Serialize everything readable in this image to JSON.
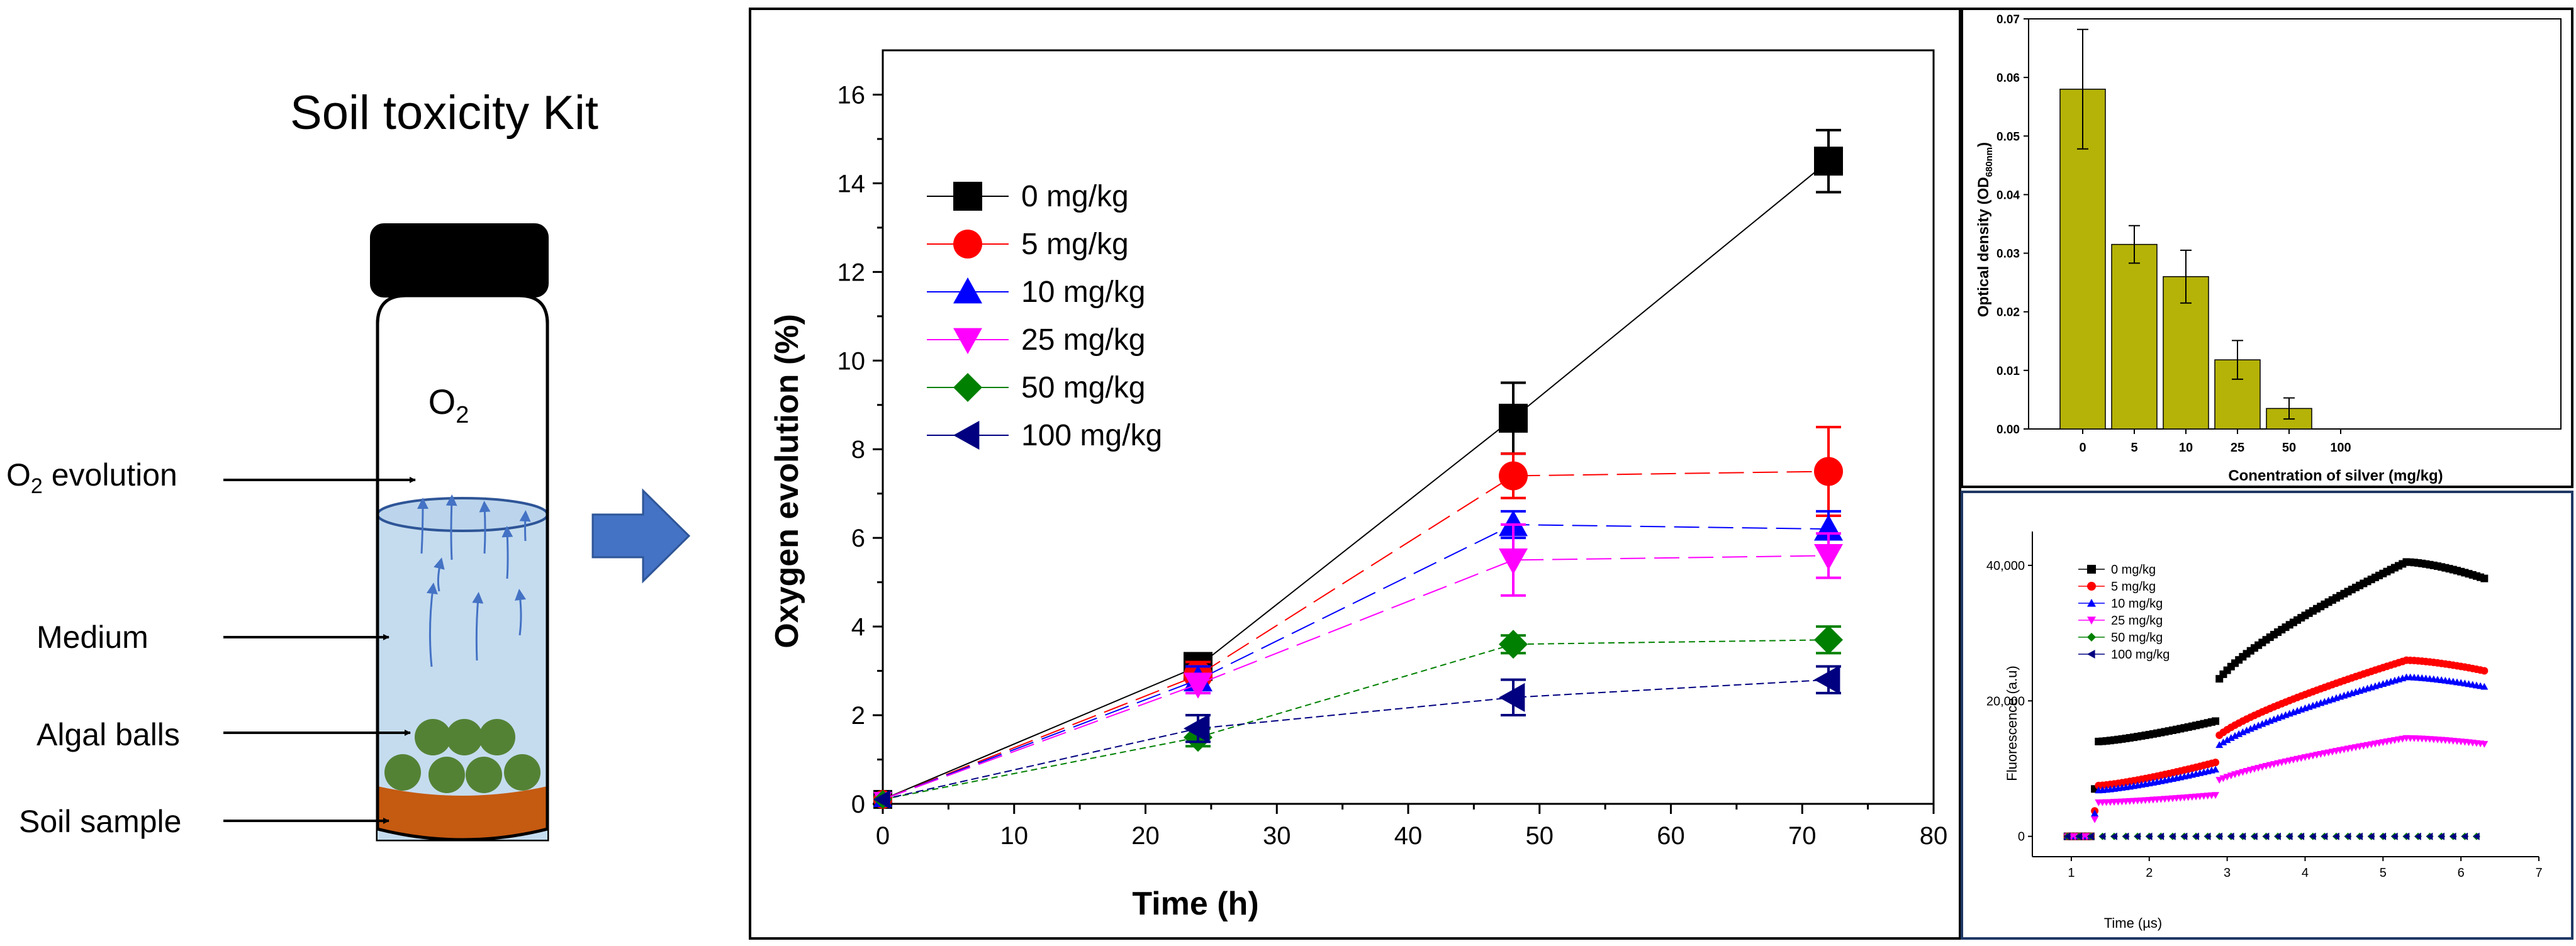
{
  "kit": {
    "title": "Soil toxicity Kit",
    "o2_label": "O",
    "o2_sub": "2",
    "labels": {
      "evolution_prefix": "O",
      "evolution_sub": "2",
      "evolution_suffix": " evolution",
      "medium": "Medium",
      "algal_balls": "Algal balls",
      "soil_sample": "Soil sample"
    },
    "colors": {
      "cap": "#000000",
      "medium": "#c5dcef",
      "soil": "#c55a11",
      "ball": "#548235",
      "arrow": "#4472c4"
    }
  },
  "chart_data": [
    {
      "id": "main",
      "type": "line",
      "title": "",
      "xlabel": "Time (h)",
      "ylabel": "Oxygen evolution (%)",
      "xlim": [
        0,
        80
      ],
      "ylim": [
        0,
        17
      ],
      "xticks": [
        0,
        10,
        20,
        30,
        40,
        50,
        60,
        70,
        80
      ],
      "yticks": [
        0,
        2,
        4,
        6,
        8,
        10,
        12,
        14,
        16
      ],
      "x": [
        0,
        24,
        48,
        72
      ],
      "series": [
        {
          "name": "0 mg/kg",
          "color": "#000000",
          "marker": "square",
          "values": [
            0.1,
            3.1,
            8.7,
            14.5
          ],
          "errors": [
            0.1,
            0.15,
            0.8,
            0.7
          ]
        },
        {
          "name": "5 mg/kg",
          "color": "#ff0000",
          "marker": "circle",
          "values": [
            0.1,
            2.9,
            7.4,
            7.5
          ],
          "errors": [
            0.1,
            0.3,
            0.5,
            1.0
          ]
        },
        {
          "name": "10 mg/kg",
          "color": "#0000ff",
          "marker": "triangle-up",
          "values": [
            0.1,
            2.8,
            6.3,
            6.2
          ],
          "errors": [
            0.1,
            0.3,
            0.3,
            0.4
          ]
        },
        {
          "name": "25 mg/kg",
          "color": "#ff00ff",
          "marker": "triangle-down",
          "values": [
            0.1,
            2.7,
            5.5,
            5.6
          ],
          "errors": [
            0.1,
            0.2,
            0.8,
            0.5
          ]
        },
        {
          "name": "50 mg/kg",
          "color": "#008000",
          "marker": "diamond",
          "values": [
            0.1,
            1.5,
            3.6,
            3.7
          ],
          "errors": [
            0.1,
            0.2,
            0.2,
            0.3
          ]
        },
        {
          "name": "100 mg/kg",
          "color": "#000080",
          "marker": "triangle-left",
          "values": [
            0.1,
            1.7,
            2.4,
            2.8
          ],
          "errors": [
            0.1,
            0.3,
            0.4,
            0.3
          ]
        }
      ],
      "legend": "upper-left"
    },
    {
      "id": "od",
      "type": "bar",
      "title": "",
      "xlabel": "Conentration of silver (mg/kg)",
      "ylabel": "Optical density (OD",
      "ylabel_sub": "680nm",
      "ylabel_suffix": ")",
      "ylim": [
        0,
        0.07
      ],
      "yticks": [
        "0.00",
        "0.01",
        "0.02",
        "0.03",
        "0.04",
        "0.05",
        "0.06",
        "0.07"
      ],
      "categories": [
        "0",
        "5",
        "10",
        "25",
        "50",
        "100"
      ],
      "values": [
        0.058,
        0.0315,
        0.026,
        0.0118,
        0.0035,
        0
      ],
      "errors": [
        0.0102,
        0.0032,
        0.0045,
        0.0033,
        0.0018,
        0
      ],
      "color": "#b5b307"
    },
    {
      "id": "fluor",
      "type": "scatter",
      "title": "",
      "xlabel": "Time (µs)",
      "ylabel": "Fluorescence (a.u)",
      "xlim": [
        0.5,
        7
      ],
      "ylim": [
        -3000,
        45000
      ],
      "xticks": [
        1,
        2,
        3,
        4,
        5,
        6,
        7
      ],
      "ytick_values": [
        0,
        20000,
        40000
      ],
      "ytick_labels": [
        "0",
        "20,000",
        "40,000"
      ],
      "series": [
        {
          "name": "0 mg/kg",
          "color": "#000000",
          "marker": "square",
          "peak": 40500,
          "start": 14000
        },
        {
          "name": "5 mg/kg",
          "color": "#ff0000",
          "marker": "circle",
          "peak": 26000,
          "start": 7500
        },
        {
          "name": "10 mg/kg",
          "color": "#0000ff",
          "marker": "triangle-up",
          "peak": 23500,
          "start": 6800
        },
        {
          "name": "25 mg/kg",
          "color": "#ff00ff",
          "marker": "triangle-down",
          "peak": 14500,
          "start": 5000
        },
        {
          "name": "50 mg/kg",
          "color": "#008000",
          "marker": "diamond",
          "peak": 0,
          "start": 0
        },
        {
          "name": "100 mg/kg",
          "color": "#000080",
          "marker": "triangle-left",
          "peak": 0,
          "start": 0
        }
      ]
    }
  ]
}
